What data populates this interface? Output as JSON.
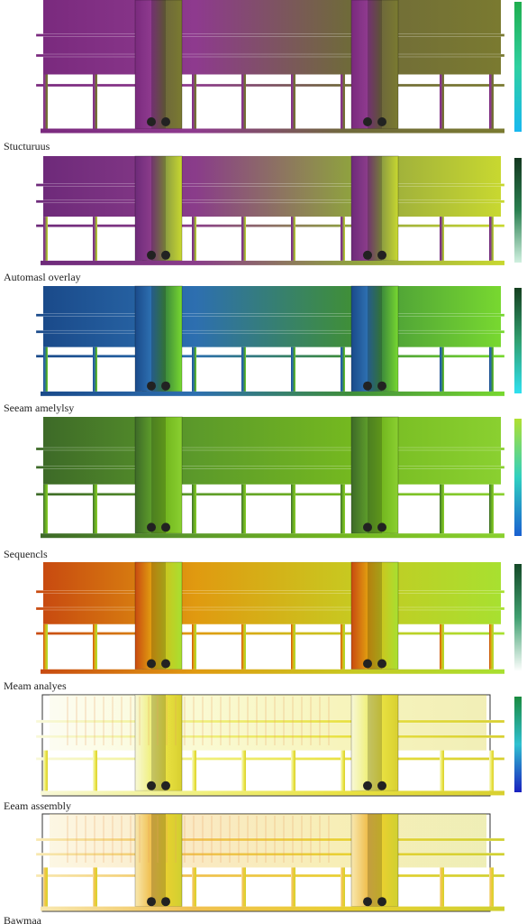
{
  "panels": [
    {
      "label": "Stucturuus"
    },
    {
      "label": "Automasl overlay"
    },
    {
      "label": "Seeam amelylsy"
    },
    {
      "label": "Sequencls"
    },
    {
      "label": "Meam analyes"
    },
    {
      "label": "Eeam assembly"
    },
    {
      "label": "Bawmaa"
    }
  ]
}
